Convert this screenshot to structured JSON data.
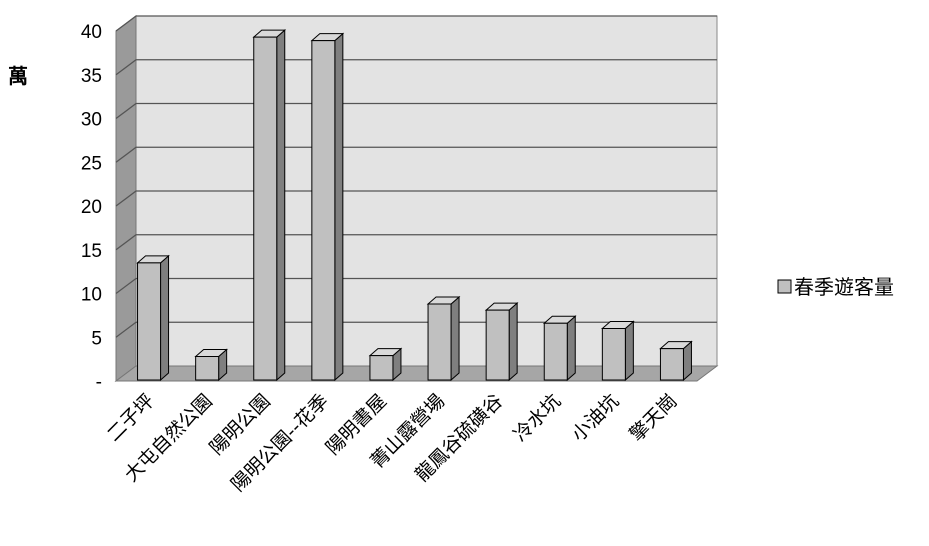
{
  "chart_data": {
    "type": "bar",
    "ylabel": "萬",
    "yticks": [
      "-",
      "5",
      "10",
      "15",
      "20",
      "25",
      "30",
      "35",
      "40"
    ],
    "ylim": [
      0,
      40
    ],
    "grid": true,
    "legend_position": "right",
    "categories": [
      "二子坪",
      "大屯自然公園",
      "陽明公園",
      "陽明公園--花季",
      "陽明書屋",
      "菁山露營場",
      "龍鳳谷硫磺谷",
      "冷水坑",
      "小油坑",
      "擎天崗"
    ],
    "series": [
      {
        "name": "春季遊客量",
        "values": [
          13.5,
          2.8,
          39.3,
          38.9,
          2.9,
          8.8,
          8.1,
          6.6,
          6.0,
          3.7
        ]
      }
    ]
  },
  "colors": {
    "bar_front": "#c0c0c0",
    "bar_side": "#7f7f7f",
    "bar_top": "#d9d9d9",
    "wall": "#e3e3e3",
    "side_wall": "#9a9a9a",
    "floor": "#a6a6a6",
    "grid": "#555555"
  }
}
